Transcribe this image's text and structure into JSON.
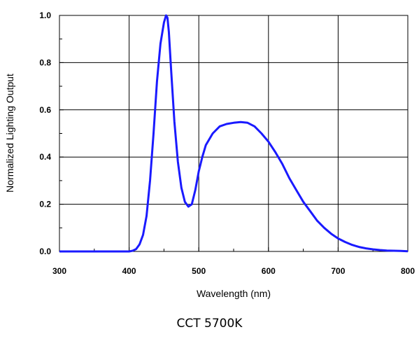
{
  "caption": "CCT 5700K",
  "chart_data": {
    "type": "line",
    "xlabel": "Wavelength (nm)",
    "ylabel": "Normalized Lighting Output",
    "xlim": [
      300,
      800
    ],
    "ylim": [
      0.0,
      1.0
    ],
    "xticks": [
      "300",
      "400",
      "500",
      "600",
      "700",
      "800"
    ],
    "yticks": [
      "0.0",
      "0.2",
      "0.4",
      "0.6",
      "0.8",
      "1.0"
    ],
    "grid": true,
    "line_color": "#1a1aff",
    "series": [
      {
        "x": [
          300,
          350,
          400,
          405,
          410,
          415,
          420,
          425,
          430,
          435,
          440,
          445,
          450,
          453,
          455,
          457,
          460,
          465,
          470,
          475,
          480,
          485,
          490,
          495,
          500,
          505,
          510,
          520,
          530,
          540,
          550,
          560,
          570,
          580,
          590,
          600,
          610,
          620,
          630,
          640,
          650,
          660,
          670,
          680,
          690,
          700,
          710,
          720,
          730,
          740,
          750,
          760,
          770,
          780,
          790,
          800
        ],
        "y": [
          0.0,
          0.0,
          0.0,
          0.003,
          0.01,
          0.03,
          0.07,
          0.15,
          0.3,
          0.5,
          0.72,
          0.88,
          0.97,
          1.0,
          0.99,
          0.93,
          0.78,
          0.55,
          0.38,
          0.27,
          0.21,
          0.19,
          0.2,
          0.26,
          0.34,
          0.4,
          0.45,
          0.5,
          0.53,
          0.54,
          0.545,
          0.548,
          0.545,
          0.53,
          0.5,
          0.465,
          0.42,
          0.37,
          0.31,
          0.26,
          0.21,
          0.17,
          0.13,
          0.1,
          0.075,
          0.055,
          0.04,
          0.028,
          0.019,
          0.013,
          0.009,
          0.006,
          0.004,
          0.003,
          0.002,
          0.001
        ]
      }
    ]
  }
}
